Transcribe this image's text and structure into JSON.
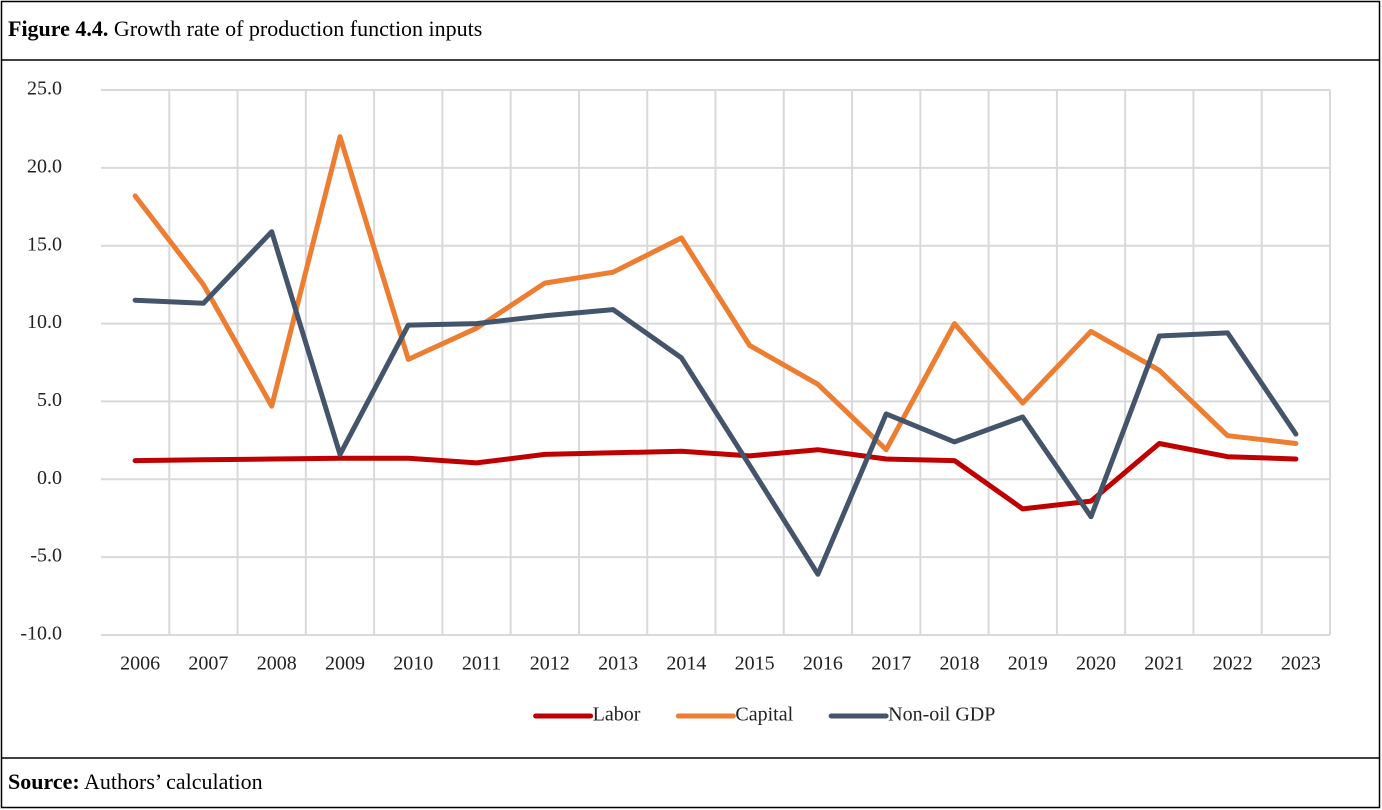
{
  "figure_label": "Figure 4.4.",
  "source_label": "Source:",
  "source": "Authors’ calculation",
  "chart_data": {
    "type": "line",
    "title": "Growth rate of production function inputs",
    "categories": [
      "2006",
      "2007",
      "2008",
      "2009",
      "2010",
      "2011",
      "2012",
      "2013",
      "2014",
      "2015",
      "2016",
      "2017",
      "2018",
      "2019",
      "2020",
      "2021",
      "2022",
      "2023"
    ],
    "series": [
      {
        "name": "Labor",
        "color": "#c00000",
        "values": [
          1.2,
          1.25,
          1.3,
          1.35,
          1.35,
          1.05,
          1.6,
          1.7,
          1.8,
          1.5,
          1.9,
          1.3,
          1.2,
          -1.9,
          -1.4,
          2.3,
          1.45,
          1.3
        ]
      },
      {
        "name": "Capital",
        "color": "#ed7d31",
        "values": [
          18.2,
          12.5,
          4.7,
          22.0,
          7.7,
          9.7,
          12.6,
          13.3,
          15.5,
          8.6,
          6.1,
          1.9,
          10.0,
          4.9,
          9.5,
          7.0,
          2.8,
          2.3
        ]
      },
      {
        "name": "Non-oil GDP",
        "color": "#44546a",
        "values": [
          11.5,
          11.3,
          15.9,
          1.6,
          9.9,
          10.0,
          10.5,
          10.9,
          7.8,
          0.9,
          -6.1,
          4.2,
          2.4,
          4.0,
          -2.4,
          9.2,
          9.4,
          2.9
        ]
      }
    ],
    "ylim": [
      -10,
      25
    ],
    "yticks": [
      {
        "value": -10,
        "label": "-10.0"
      },
      {
        "value": -5,
        "label": "-5.0"
      },
      {
        "value": 0,
        "label": "0.0"
      },
      {
        "value": 5,
        "label": "5.0"
      },
      {
        "value": 10,
        "label": "10.0"
      },
      {
        "value": 15,
        "label": "15.0"
      },
      {
        "value": 20,
        "label": "20.0"
      },
      {
        "value": 25,
        "label": "25.0"
      }
    ],
    "grid": true,
    "legend": "bottom"
  }
}
